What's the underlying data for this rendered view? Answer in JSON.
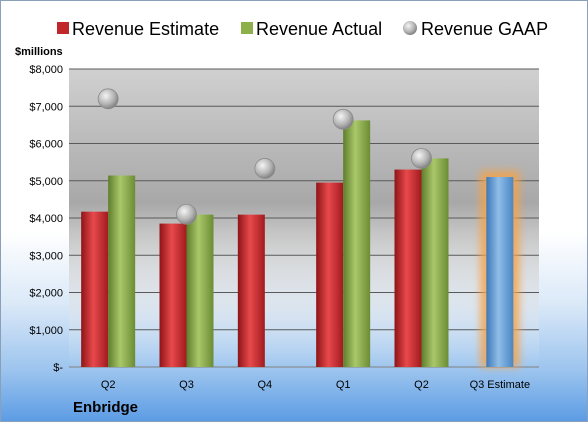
{
  "company": "Enbridge",
  "chart_data": {
    "type": "bar",
    "ylabel": "$millions",
    "ylim": [
      0,
      8000
    ],
    "yticks": [
      0,
      1000,
      2000,
      3000,
      4000,
      5000,
      6000,
      7000,
      8000
    ],
    "ytick_labels": [
      "$-",
      "$1,000",
      "$2,000",
      "$3,000",
      "$4,000",
      "$5,000",
      "$6,000",
      "$7,000",
      "$8,000"
    ],
    "grid": true,
    "legend": "top",
    "categories": [
      "Q2",
      "Q3",
      "Q4",
      "Q1",
      "Q2",
      "Q3 Estimate"
    ],
    "series": [
      {
        "name": "Revenue Estimate",
        "type": "bar",
        "color": "#c0262a",
        "values": [
          4170,
          3850,
          4090,
          4950,
          5300,
          null
        ]
      },
      {
        "name": "Revenue Actual",
        "type": "bar",
        "color": "#8db04a",
        "values": [
          5140,
          4090,
          null,
          6620,
          5600,
          null
        ]
      },
      {
        "name": "Revenue GAAP",
        "type": "scatter",
        "color": "#b8b8b8",
        "values": [
          7200,
          4100,
          5330,
          6650,
          5600,
          null
        ]
      },
      {
        "name": "",
        "type": "bar",
        "color": "#5b9bd5",
        "highlight": "#f5a34a",
        "values": [
          null,
          null,
          null,
          null,
          null,
          5100
        ]
      }
    ]
  }
}
